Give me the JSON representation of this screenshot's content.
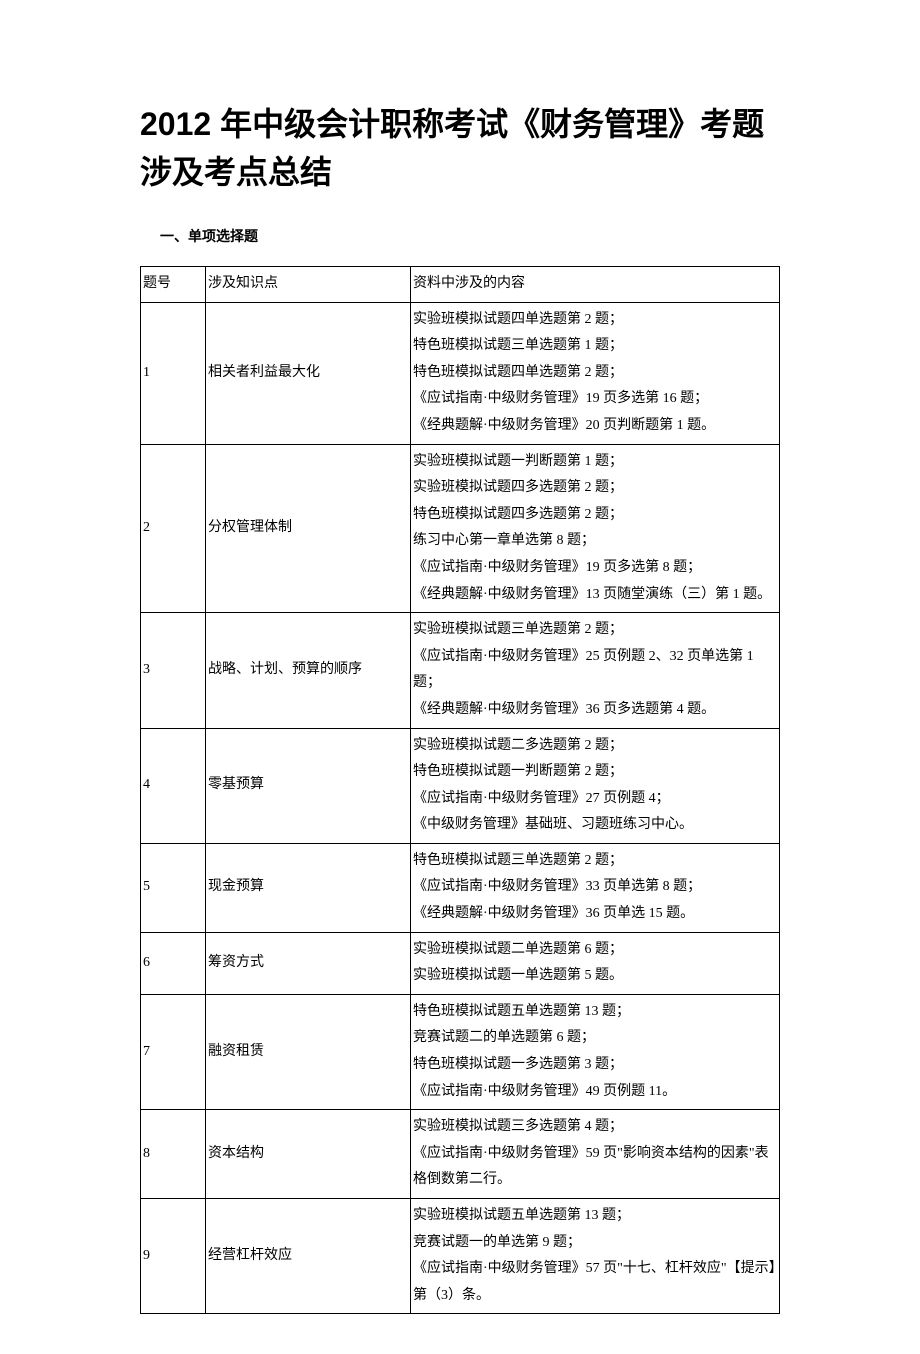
{
  "title": "2012 年中级会计职称考试《财务管理》考题涉及考点总结",
  "section_header": "一、单项选择题",
  "table": {
    "headers": {
      "col1": "题号",
      "col2": "涉及知识点",
      "col3": "资料中涉及的内容"
    },
    "rows": [
      {
        "num": "1",
        "topic": "相关者利益最大化",
        "content": [
          "实验班模拟试题四单选题第 2 题；",
          "特色班模拟试题三单选题第 1 题；",
          "特色班模拟试题四单选题第 2 题；",
          "《应试指南·中级财务管理》19 页多选第 16 题；",
          "《经典题解·中级财务管理》20 页判断题第 1 题。"
        ]
      },
      {
        "num": "2",
        "topic": "分权管理体制",
        "content": [
          "实验班模拟试题一判断题第 1 题；",
          "实验班模拟试题四多选题第 2 题；",
          "特色班模拟试题四多选题第 2 题；",
          "练习中心第一章单选第 8 题；",
          "《应试指南·中级财务管理》19 页多选第 8 题；",
          "《经典题解·中级财务管理》13 页随堂演练（三）第 1 题。"
        ]
      },
      {
        "num": "3",
        "topic": "战略、计划、预算的顺序",
        "content": [
          "实验班模拟试题三单选题第 2 题；",
          "《应试指南·中级财务管理》25 页例题 2、32 页单选第 1 题；",
          "《经典题解·中级财务管理》36 页多选题第 4 题。"
        ]
      },
      {
        "num": "4",
        "topic": "零基预算",
        "content": [
          "实验班模拟试题二多选题第 2 题；",
          "特色班模拟试题一判断题第 2 题；",
          "《应试指南·中级财务管理》27 页例题 4；",
          "《中级财务管理》基础班、习题班练习中心。"
        ]
      },
      {
        "num": "5",
        "topic": "现金预算",
        "content": [
          "特色班模拟试题三单选题第 2 题；",
          "《应试指南·中级财务管理》33 页单选第 8 题；",
          "《经典题解·中级财务管理》36 页单选 15 题。"
        ]
      },
      {
        "num": "6",
        "topic": "筹资方式",
        "content": [
          "实验班模拟试题二单选题第 6 题；",
          "实验班模拟试题一单选题第 5 题。"
        ]
      },
      {
        "num": "7",
        "topic": "融资租赁",
        "content": [
          "特色班模拟试题五单选题第 13 题；",
          "竞赛试题二的单选题第 6 题；",
          "特色班模拟试题一多选题第 3 题；",
          "《应试指南·中级财务管理》49 页例题 11。"
        ]
      },
      {
        "num": "8",
        "topic": "资本结构",
        "content": [
          "实验班模拟试题三多选题第 4 题；",
          "《应试指南·中级财务管理》59 页\"影响资本结构的因素\"表格倒数第二行。"
        ]
      },
      {
        "num": "9",
        "topic": "经营杠杆效应",
        "content": [
          "实验班模拟试题五单选题第 13 题；",
          "竞赛试题一的单选第 9 题；",
          "《应试指南·中级财务管理》57 页\"十七、杠杆效应\"【提示】第（3）条。"
        ]
      }
    ]
  }
}
